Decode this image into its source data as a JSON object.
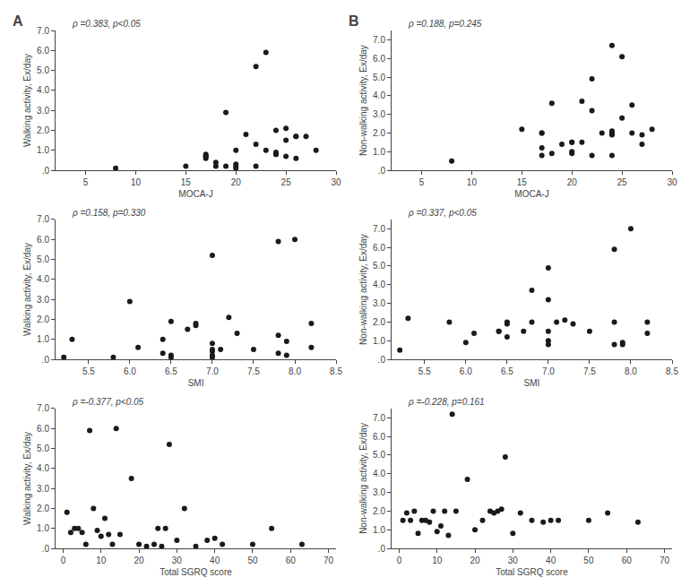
{
  "chart_data": [
    {
      "type": "scatter",
      "title": "A",
      "annotations": [
        "ρ =0.383, p<0.05"
      ],
      "xlabel": "MOCA-J",
      "ylabel": "Walking activity, Ex/day",
      "xlim": [
        2,
        30
      ],
      "ylim": [
        0,
        7
      ],
      "xticks": [
        5,
        10,
        15,
        20,
        25,
        30
      ],
      "yticks": [
        {
          "value": 0,
          "label": ".0"
        },
        {
          "value": 1.0,
          "label": "1.0"
        },
        {
          "value": 2.0,
          "label": "2.0"
        },
        {
          "value": 3.0,
          "label": "3.0"
        },
        {
          "value": 4.0,
          "label": "4.0"
        },
        {
          "value": 5.0,
          "label": "5.0"
        },
        {
          "value": 6.0,
          "label": "6.0"
        },
        {
          "value": 7.0,
          "label": "7.0"
        }
      ],
      "x": [
        8,
        15,
        17,
        17,
        17,
        17,
        18,
        18,
        19,
        19,
        20,
        20,
        20,
        20,
        21,
        22,
        22,
        22,
        23,
        23,
        24,
        24,
        24,
        24,
        25,
        25,
        25,
        26,
        26,
        26,
        27,
        28
      ],
      "values": [
        0.1,
        0.2,
        0.6,
        0.7,
        0.7,
        0.8,
        0.2,
        0.4,
        2.9,
        0.2,
        0.3,
        1.0,
        0.2,
        0.1,
        1.8,
        1.3,
        5.2,
        0.2,
        1.0,
        5.9,
        2.0,
        0.8,
        0.8,
        0.9,
        1.5,
        2.1,
        0.7,
        1.7,
        1.7,
        0.6,
        1.7,
        1.0
      ],
      "color": "#1a1a1a",
      "grid": false
    },
    {
      "type": "scatter",
      "title": "B",
      "annotations": [
        "ρ =0.188, p=0.245"
      ],
      "xlabel": "MOCA-J",
      "ylabel": "Non-walking activity, Ex/day",
      "xlim": [
        2,
        30
      ],
      "ylim": [
        0,
        7.5
      ],
      "xticks": [
        5,
        10,
        15,
        20,
        25,
        30
      ],
      "yticks": [
        {
          "value": 0,
          "label": ".0"
        },
        {
          "value": 1.0,
          "label": "1.0"
        },
        {
          "value": 2.0,
          "label": "2.0"
        },
        {
          "value": 3.0,
          "label": "3.0"
        },
        {
          "value": 4.0,
          "label": "4.0"
        },
        {
          "value": 5.0,
          "label": "5.0"
        },
        {
          "value": 6.0,
          "label": "6.0"
        },
        {
          "value": 7.0,
          "label": "7.0"
        }
      ],
      "x": [
        8,
        15,
        17,
        17,
        17,
        17,
        18,
        18,
        19,
        20,
        20,
        20,
        20,
        21,
        21,
        22,
        22,
        22,
        23,
        24,
        24,
        24,
        24,
        24,
        24,
        25,
        25,
        26,
        26,
        27,
        27,
        28
      ],
      "values": [
        0.5,
        2.2,
        2.0,
        2.0,
        0.8,
        1.2,
        3.6,
        0.9,
        1.4,
        1.5,
        1.5,
        0.9,
        1.0,
        1.5,
        3.7,
        4.9,
        0.8,
        3.2,
        2.0,
        1.9,
        2.0,
        2.0,
        2.1,
        0.8,
        6.7,
        2.8,
        6.1,
        3.5,
        2.0,
        1.4,
        1.9,
        2.2
      ],
      "color": "#1a1a1a",
      "grid": false
    },
    {
      "type": "scatter",
      "annotations": [
        "ρ =0.158, p=0.330"
      ],
      "xlabel": "SMI",
      "ylabel": "Walking activity, Ex/day",
      "xlim": [
        5.1,
        8.5
      ],
      "ylim": [
        0,
        7
      ],
      "xticks": [
        5.5,
        {
          "value": 6.0,
          "label": "6.0"
        },
        6.5,
        {
          "value": 7.0,
          "label": "7.0"
        },
        7.5,
        {
          "value": 8.0,
          "label": "8.0"
        },
        8.5
      ],
      "yticks": [
        {
          "value": 0,
          "label": ".0"
        },
        {
          "value": 1.0,
          "label": "1.0"
        },
        {
          "value": 2.0,
          "label": "2.0"
        },
        {
          "value": 3.0,
          "label": "3.0"
        },
        {
          "value": 4.0,
          "label": "4.0"
        },
        {
          "value": 5.0,
          "label": "5.0"
        },
        {
          "value": 6.0,
          "label": "6.0"
        },
        {
          "value": 7.0,
          "label": "7.0"
        }
      ],
      "x": [
        5.2,
        5.3,
        5.8,
        6.0,
        6.1,
        6.4,
        6.4,
        6.5,
        6.5,
        6.5,
        6.7,
        6.8,
        6.8,
        7.0,
        7.0,
        7.0,
        7.0,
        7.0,
        7.0,
        7.1,
        7.2,
        7.3,
        7.5,
        7.8,
        7.8,
        7.8,
        7.9,
        7.9,
        8.0,
        8.2,
        8.2
      ],
      "values": [
        0.1,
        1.0,
        0.1,
        2.9,
        0.6,
        0.3,
        1.0,
        1.9,
        0.2,
        0.1,
        1.5,
        1.8,
        1.7,
        0.8,
        0.4,
        0.5,
        5.2,
        0.2,
        0.1,
        0.5,
        2.1,
        1.3,
        0.5,
        5.9,
        1.2,
        0.3,
        0.2,
        0.9,
        6.0,
        0.6,
        1.8
      ],
      "color": "#1a1a1a",
      "grid": false
    },
    {
      "type": "scatter",
      "annotations": [
        "ρ =0.337, p<0.05"
      ],
      "xlabel": "SMI",
      "ylabel": "Non-walking activity, Ex/day",
      "xlim": [
        5.1,
        8.5
      ],
      "ylim": [
        0,
        7.5
      ],
      "xticks": [
        5.5,
        {
          "value": 6.0,
          "label": "6.0"
        },
        6.5,
        {
          "value": 7.0,
          "label": "7.0"
        },
        7.5,
        {
          "value": 8.0,
          "label": "8.0"
        },
        8.5
      ],
      "yticks": [
        {
          "value": 0,
          "label": ".0"
        },
        {
          "value": 1.0,
          "label": "1.0"
        },
        {
          "value": 2.0,
          "label": "2.0"
        },
        {
          "value": 3.0,
          "label": "3.0"
        },
        {
          "value": 4.0,
          "label": "4.0"
        },
        {
          "value": 5.0,
          "label": "5.0"
        },
        {
          "value": 6.0,
          "label": "6.0"
        },
        {
          "value": 7.0,
          "label": "7.0"
        }
      ],
      "x": [
        5.2,
        5.3,
        5.8,
        6.0,
        6.1,
        6.4,
        6.4,
        6.5,
        6.5,
        6.5,
        6.7,
        6.8,
        6.8,
        7.0,
        7.0,
        7.0,
        7.0,
        7.0,
        7.1,
        7.2,
        7.3,
        7.5,
        7.8,
        7.8,
        7.8,
        7.9,
        7.9,
        8.0,
        8.2,
        8.2
      ],
      "values": [
        0.5,
        2.2,
        2.0,
        0.9,
        1.4,
        1.5,
        1.5,
        1.9,
        2.0,
        1.2,
        1.5,
        2.0,
        3.7,
        0.8,
        1.0,
        1.5,
        4.9,
        3.2,
        2.0,
        2.1,
        1.9,
        1.5,
        5.9,
        2.0,
        0.8,
        0.8,
        0.9,
        7.0,
        2.0,
        1.4
      ],
      "color": "#1a1a1a",
      "grid": false
    },
    {
      "type": "scatter",
      "annotations": [
        "ρ =-0.377, p<0.05"
      ],
      "xlabel": "Total SGRQ score",
      "ylabel": "Walking activity, Ex/day",
      "xlim": [
        -2,
        72
      ],
      "ylim": [
        0,
        7
      ],
      "xticks": [
        0,
        10,
        20,
        30,
        40,
        50,
        60,
        70
      ],
      "yticks": [
        {
          "value": 0,
          "label": ".0"
        },
        {
          "value": 1.0,
          "label": "1.0"
        },
        {
          "value": 2.0,
          "label": "2.0"
        },
        {
          "value": 3.0,
          "label": "3.0"
        },
        {
          "value": 4.0,
          "label": "4.0"
        },
        {
          "value": 5.0,
          "label": "5.0"
        },
        {
          "value": 6.0,
          "label": "6.0"
        },
        {
          "value": 7.0,
          "label": "7.0"
        }
      ],
      "x": [
        1,
        2,
        3,
        4,
        5,
        6,
        7,
        8,
        9,
        10,
        11,
        12,
        13,
        14,
        15,
        18,
        20,
        22,
        24,
        25,
        26,
        27,
        28,
        30,
        32,
        35,
        38,
        40,
        42,
        50,
        55,
        63
      ],
      "values": [
        1.8,
        0.8,
        1.0,
        1.0,
        0.8,
        0.2,
        5.9,
        2.0,
        0.9,
        0.6,
        1.5,
        0.7,
        0.2,
        6.0,
        0.7,
        3.5,
        0.2,
        0.1,
        0.2,
        1.0,
        0.1,
        1.0,
        5.2,
        0.4,
        2.0,
        0.1,
        0.4,
        0.5,
        0.2,
        0.2,
        1.0,
        0.2
      ],
      "color": "#1a1a1a",
      "grid": false
    },
    {
      "type": "scatter",
      "annotations": [
        "ρ =-0.228, p=0.161"
      ],
      "xlabel": "Total SGRQ score",
      "ylabel": "Non-walking activity, Ex/day",
      "xlim": [
        -2,
        72
      ],
      "ylim": [
        0,
        7.5
      ],
      "xticks": [
        0,
        10,
        20,
        30,
        40,
        50,
        60,
        70
      ],
      "yticks": [
        {
          "value": 0,
          "label": ".0"
        },
        {
          "value": 1.0,
          "label": "1.0"
        },
        {
          "value": 2.0,
          "label": "2.0"
        },
        {
          "value": 3.0,
          "label": "3.0"
        },
        {
          "value": 4.0,
          "label": "4.0"
        },
        {
          "value": 5.0,
          "label": "5.0"
        },
        {
          "value": 6.0,
          "label": "6.0"
        },
        {
          "value": 7.0,
          "label": "7.0"
        }
      ],
      "x": [
        1,
        2,
        3,
        4,
        5,
        6,
        7,
        8,
        9,
        10,
        11,
        12,
        13,
        14,
        15,
        18,
        20,
        22,
        24,
        25,
        26,
        27,
        28,
        30,
        32,
        35,
        38,
        40,
        42,
        50,
        55,
        63
      ],
      "values": [
        1.5,
        1.9,
        1.5,
        2.0,
        0.8,
        1.5,
        1.5,
        1.4,
        2.0,
        0.9,
        1.2,
        2.0,
        0.7,
        7.2,
        2.0,
        3.7,
        1.0,
        1.5,
        2.0,
        1.9,
        2.0,
        2.1,
        4.9,
        0.8,
        1.9,
        1.5,
        1.4,
        1.5,
        1.5,
        1.5,
        1.9,
        1.4
      ],
      "color": "#1a1a1a",
      "grid": false
    }
  ]
}
